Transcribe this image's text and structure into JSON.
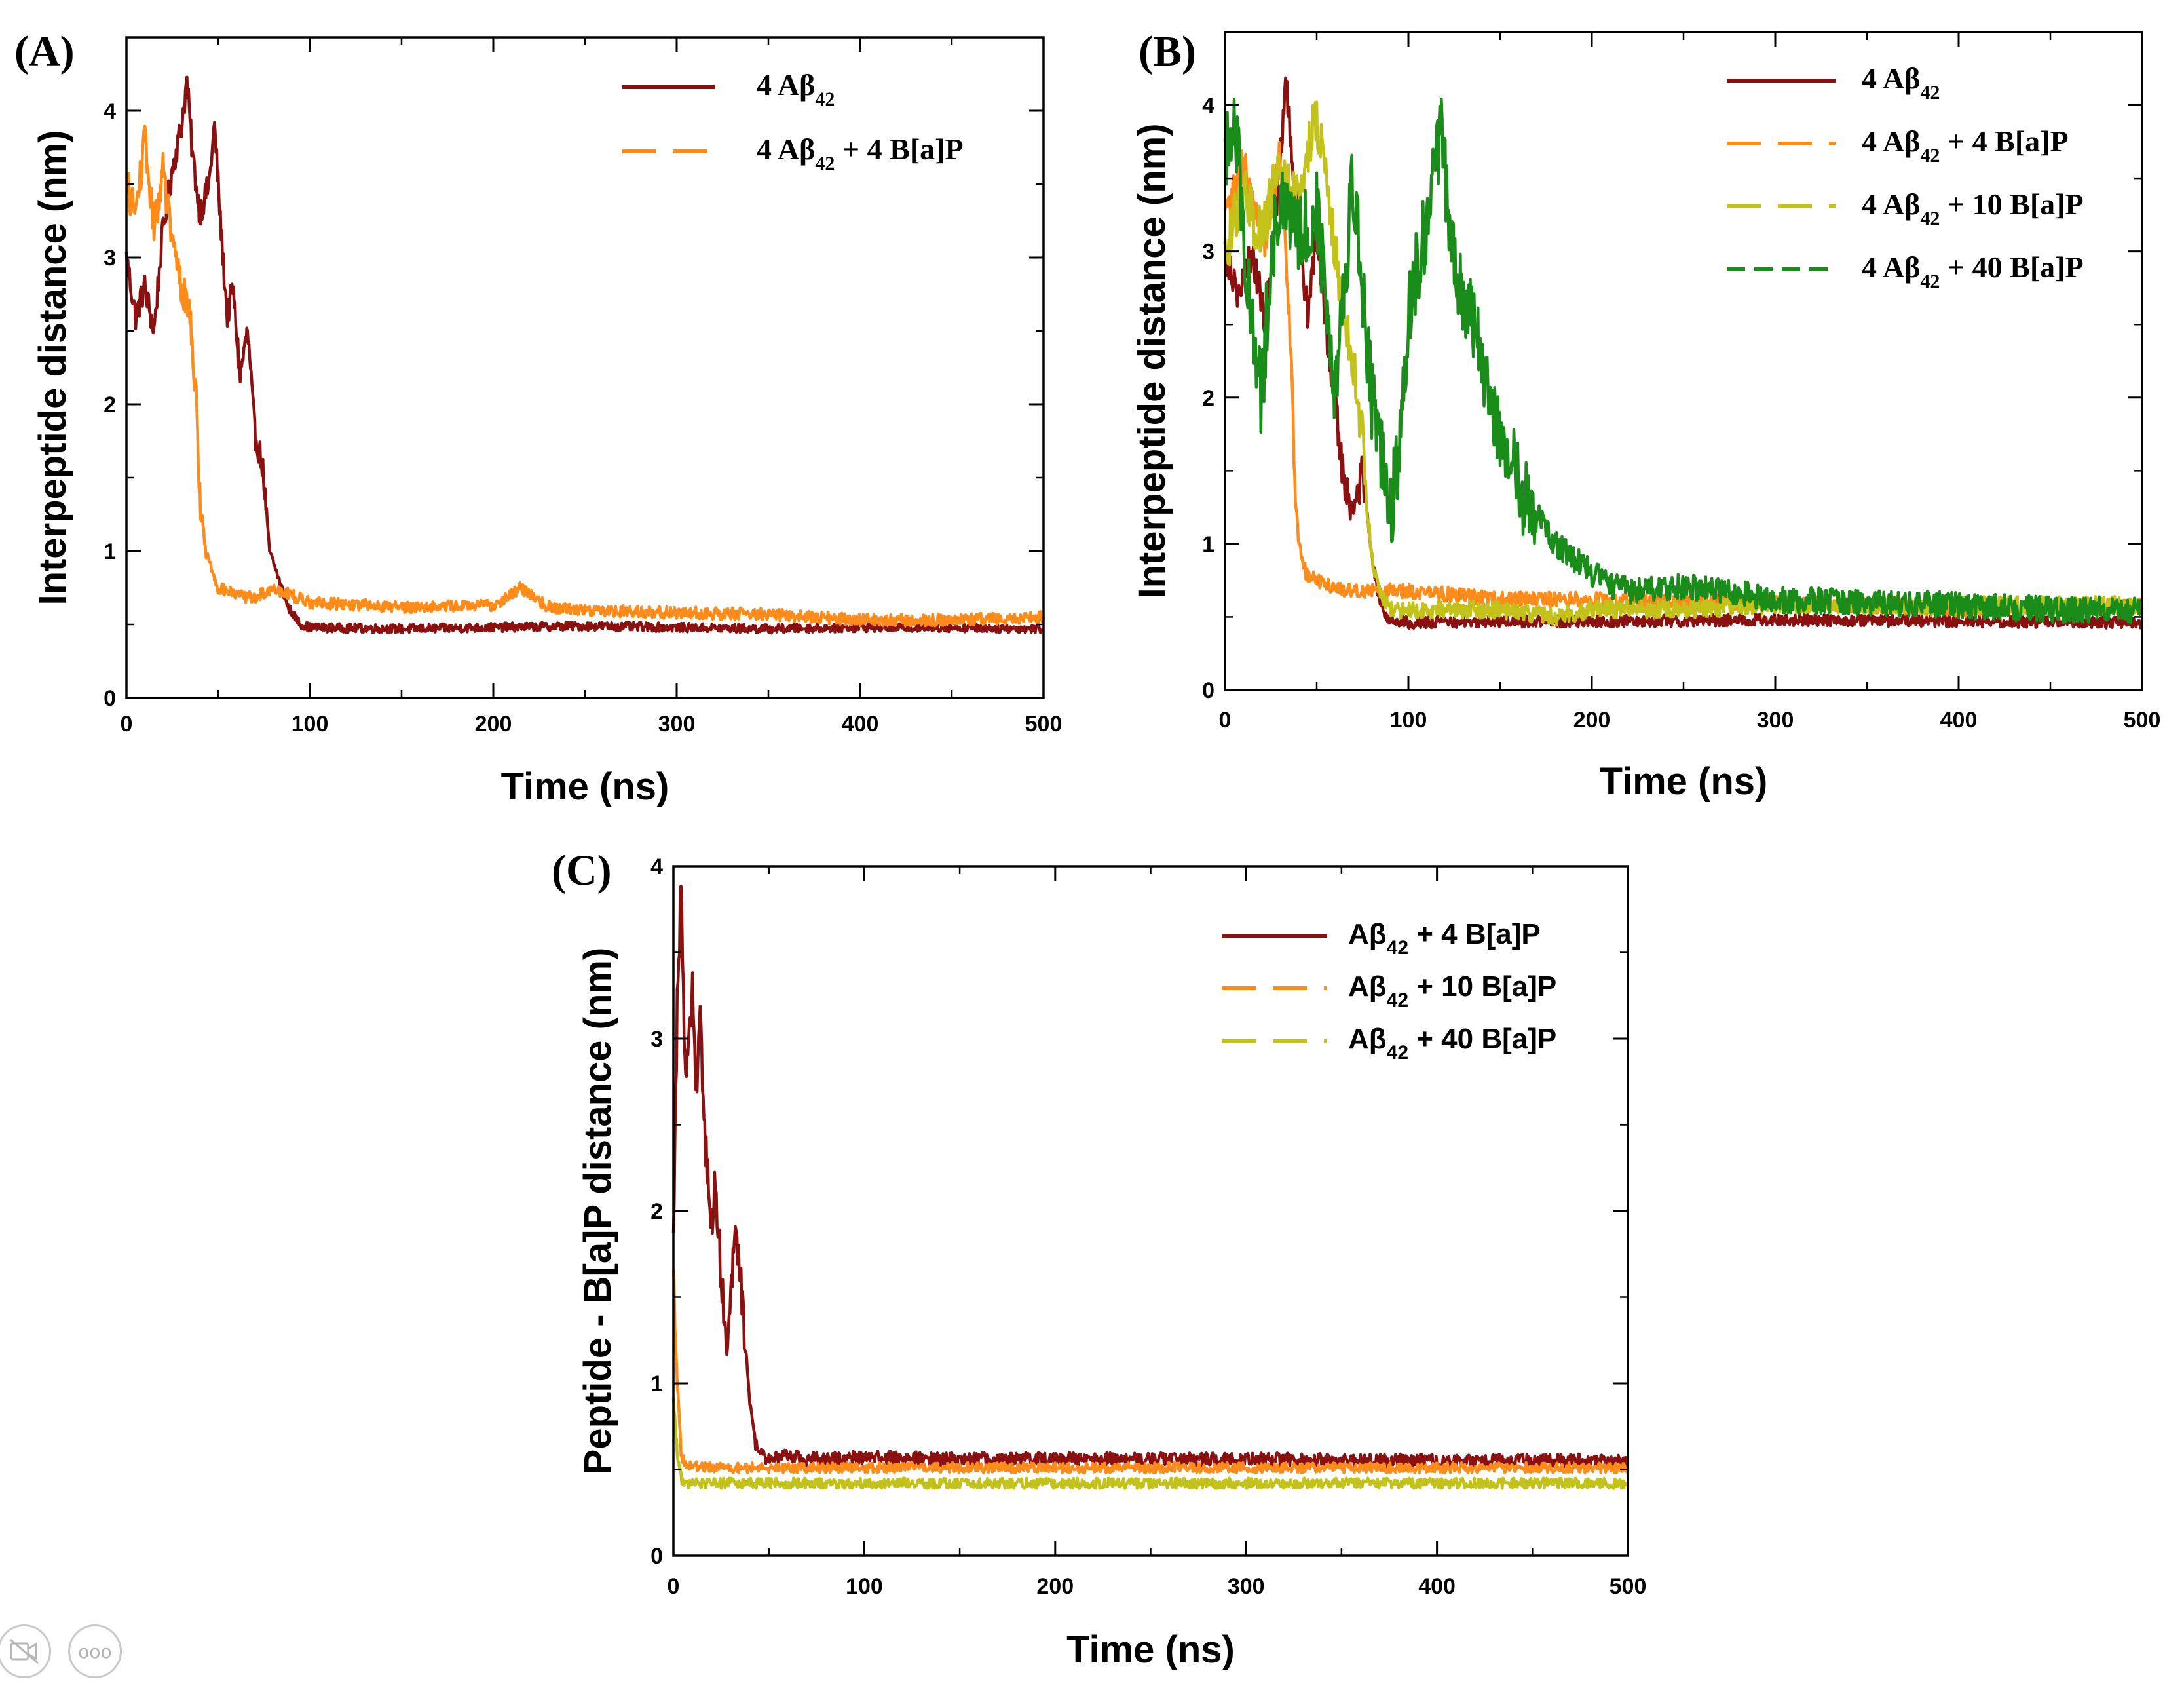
{
  "figure": {
    "panels": [
      {
        "letter": "(A)",
        "ylabel": "Interpeptide distance (nm)",
        "xlabel": "Time (ns)",
        "xticks": [
          "0",
          "100",
          "200",
          "300",
          "400",
          "500"
        ],
        "yticks": [
          "0",
          "1",
          "2",
          "3",
          "4"
        ],
        "legend": [
          {
            "main": "4 Aβ",
            "sub": "42",
            "rest": ""
          },
          {
            "main": "4 Aβ",
            "sub": "42",
            "rest": " + 4 B[a]P"
          }
        ]
      },
      {
        "letter": "(B)",
        "ylabel": "Interpeptide distance (nm)",
        "xlabel": "Time (ns)",
        "xticks": [
          "0",
          "100",
          "200",
          "300",
          "400",
          "500"
        ],
        "yticks": [
          "0",
          "1",
          "2",
          "3",
          "4"
        ],
        "legend": [
          {
            "main": "4 Aβ",
            "sub": "42",
            "rest": ""
          },
          {
            "main": "4 Aβ",
            "sub": "42",
            "rest": " + 4 B[a]P"
          },
          {
            "main": "4 Aβ",
            "sub": "42",
            "rest": " + 10 B[a]P"
          },
          {
            "main": "4 Aβ",
            "sub": "42",
            "rest": " + 40 B[a]P"
          }
        ]
      },
      {
        "letter": "(C)",
        "ylabel": "Peptide - B[a]P distance (nm)",
        "xlabel": "Time (ns)",
        "xticks": [
          "0",
          "100",
          "200",
          "300",
          "400",
          "500"
        ],
        "yticks": [
          "0",
          "1",
          "2",
          "3",
          "4"
        ],
        "legend": [
          {
            "main": "Aβ",
            "sub": "42",
            "rest": " + 4 B[a]P"
          },
          {
            "main": "Aβ",
            "sub": "42",
            "rest": " + 10 B[a]P"
          },
          {
            "main": "Aβ",
            "sub": "42",
            "rest": " + 40 B[a]P"
          }
        ]
      }
    ]
  },
  "colors": {
    "dark_red": "#8b1010",
    "orange": "#ff8c1a",
    "olive": "#c2c21a",
    "green": "#1a8c1a"
  },
  "viewer": {
    "camera_icon": "video-off-icon",
    "more_icon": "more-icon",
    "more_glyph": "ooo"
  },
  "chart_data": [
    {
      "type": "line",
      "title": "(A)",
      "xlabel": "Time (ns)",
      "ylabel": "Interpeptide distance (nm)",
      "xlim": [
        0,
        500
      ],
      "ylim": [
        0,
        4.5
      ],
      "series": [
        {
          "name": "4 Aβ42",
          "color": "#8b1010",
          "style": "solid",
          "noise": 0.03,
          "x": [
            0,
            5,
            10,
            15,
            20,
            25,
            30,
            33,
            36,
            40,
            45,
            48,
            52,
            55,
            58,
            62,
            66,
            70,
            74,
            78,
            82,
            88,
            95,
            100,
            150,
            200,
            250,
            300,
            350,
            400,
            450,
            500
          ],
          "y": [
            3.0,
            2.6,
            2.8,
            2.5,
            3.2,
            3.6,
            3.9,
            4.2,
            3.7,
            3.3,
            3.5,
            3.9,
            3.1,
            2.6,
            2.8,
            2.2,
            2.5,
            1.8,
            1.6,
            1.0,
            0.85,
            0.62,
            0.5,
            0.48,
            0.47,
            0.48,
            0.49,
            0.48,
            0.47,
            0.48,
            0.48,
            0.47
          ]
        },
        {
          "name": "4 Aβ42 + 4 B[a]P",
          "color": "#ff8c1a",
          "style": "dashed",
          "noise": 0.04,
          "x": [
            0,
            5,
            10,
            15,
            20,
            25,
            30,
            35,
            38,
            40,
            43,
            46,
            50,
            60,
            70,
            80,
            90,
            100,
            150,
            200,
            215,
            230,
            250,
            300,
            350,
            400,
            450,
            500
          ],
          "y": [
            3.5,
            3.3,
            3.8,
            3.2,
            3.6,
            3.1,
            2.8,
            2.6,
            2.0,
            1.4,
            1.0,
            0.9,
            0.75,
            0.7,
            0.68,
            0.75,
            0.7,
            0.65,
            0.62,
            0.63,
            0.75,
            0.62,
            0.6,
            0.58,
            0.57,
            0.53,
            0.53,
            0.55
          ]
        }
      ]
    },
    {
      "type": "line",
      "title": "(B)",
      "xlabel": "Time (ns)",
      "ylabel": "Interpeptide distance (nm)",
      "xlim": [
        0,
        500
      ],
      "ylim": [
        0,
        4.5
      ],
      "series": [
        {
          "name": "4 Aβ42",
          "color": "#8b1010",
          "style": "solid",
          "noise": 0.04,
          "x": [
            0,
            8,
            15,
            22,
            30,
            33,
            38,
            45,
            50,
            55,
            60,
            65,
            70,
            75,
            80,
            85,
            90,
            100,
            150,
            200,
            300,
            400,
            500
          ],
          "y": [
            3.0,
            2.7,
            3.0,
            2.5,
            3.6,
            4.2,
            3.4,
            2.6,
            3.1,
            2.5,
            2.0,
            1.4,
            1.2,
            1.5,
            0.9,
            0.55,
            0.48,
            0.46,
            0.47,
            0.47,
            0.48,
            0.47,
            0.46
          ]
        },
        {
          "name": "4 Aβ42 + 4 B[a]P",
          "color": "#ff8c1a",
          "style": "dashed",
          "noise": 0.05,
          "x": [
            0,
            10,
            20,
            30,
            35,
            38,
            40,
            44,
            50,
            60,
            70,
            100,
            150,
            200,
            250,
            300,
            400,
            500
          ],
          "y": [
            3.2,
            3.6,
            3.0,
            3.7,
            2.6,
            1.5,
            1.0,
            0.8,
            0.75,
            0.7,
            0.68,
            0.68,
            0.62,
            0.62,
            0.6,
            0.6,
            0.55,
            0.58
          ]
        },
        {
          "name": "4 Aβ42 + 10 B[a]P",
          "color": "#c2c21a",
          "style": "dashed",
          "noise": 0.06,
          "x": [
            0,
            10,
            20,
            30,
            40,
            45,
            50,
            55,
            60,
            65,
            70,
            75,
            78,
            80,
            85,
            90,
            100,
            150,
            180,
            200,
            250,
            300,
            400,
            500
          ],
          "y": [
            3.0,
            3.4,
            3.1,
            3.6,
            3.3,
            3.7,
            3.9,
            3.5,
            3.0,
            2.6,
            2.2,
            1.7,
            1.2,
            0.9,
            0.65,
            0.55,
            0.55,
            0.55,
            0.5,
            0.55,
            0.55,
            0.58,
            0.58,
            0.58
          ]
        },
        {
          "name": "4 Aβ42 + 40 B[a]P",
          "color": "#1a8c1a",
          "style": "dashed",
          "noise": 0.09,
          "x": [
            0,
            5,
            10,
            15,
            20,
            25,
            30,
            40,
            50,
            60,
            70,
            80,
            90,
            95,
            100,
            110,
            118,
            125,
            135,
            145,
            150,
            160,
            165,
            170,
            180,
            190,
            200,
            210,
            220,
            240,
            260,
            280,
            300,
            350,
            400,
            450,
            500
          ],
          "y": [
            3.6,
            4.0,
            3.2,
            2.4,
            2.0,
            3.0,
            3.3,
            3.1,
            3.3,
            2.1,
            3.5,
            2.0,
            1.2,
            1.6,
            2.6,
            3.2,
            3.8,
            2.9,
            2.5,
            2.0,
            1.8,
            1.4,
            1.3,
            1.2,
            1.0,
            0.9,
            0.8,
            0.72,
            0.68,
            0.7,
            0.7,
            0.66,
            0.62,
            0.6,
            0.58,
            0.55,
            0.55
          ]
        }
      ]
    },
    {
      "type": "line",
      "title": "(C)",
      "xlabel": "Time (ns)",
      "ylabel": "Peptide - B[a]P distance (nm)",
      "xlim": [
        0,
        500
      ],
      "ylim": [
        0,
        4
      ],
      "series": [
        {
          "name": "Aβ42 + 4 B[a]P",
          "color": "#8b1010",
          "style": "solid",
          "noise": 0.04,
          "x": [
            0,
            2,
            4,
            6,
            8,
            10,
            12,
            14,
            16,
            18,
            20,
            22,
            25,
            28,
            30,
            32,
            35,
            38,
            40,
            43,
            46,
            50,
            60,
            70,
            100,
            150,
            200,
            250,
            300,
            350,
            400,
            450,
            500
          ],
          "y": [
            1.8,
            3.2,
            3.9,
            2.8,
            3.0,
            3.3,
            2.6,
            3.1,
            2.5,
            2.2,
            1.9,
            2.2,
            1.6,
            1.2,
            1.5,
            1.9,
            1.6,
            1.2,
            0.9,
            0.65,
            0.58,
            0.57,
            0.58,
            0.56,
            0.57,
            0.56,
            0.56,
            0.56,
            0.56,
            0.55,
            0.55,
            0.55,
            0.55
          ]
        },
        {
          "name": "Aβ42 + 10 B[a]P",
          "color": "#ff8c1a",
          "style": "dashed",
          "noise": 0.03,
          "x": [
            0,
            2,
            4,
            6,
            10,
            20,
            50,
            100,
            200,
            300,
            400,
            500
          ],
          "y": [
            1.6,
            1.0,
            0.6,
            0.52,
            0.52,
            0.51,
            0.51,
            0.51,
            0.51,
            0.51,
            0.51,
            0.51
          ]
        },
        {
          "name": "Aβ42 + 40 B[a]P",
          "color": "#c2c21a",
          "style": "dashed",
          "noise": 0.03,
          "x": [
            0,
            2,
            4,
            6,
            10,
            50,
            100,
            200,
            300,
            400,
            500
          ],
          "y": [
            0.9,
            0.6,
            0.45,
            0.42,
            0.42,
            0.42,
            0.42,
            0.42,
            0.42,
            0.42,
            0.42
          ]
        }
      ]
    }
  ]
}
